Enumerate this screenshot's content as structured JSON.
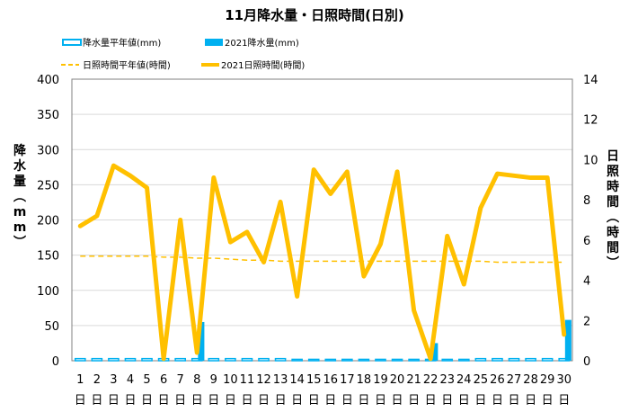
{
  "chart_data": {
    "type": "bar+line",
    "title": "11月降水量・日照時間(日別)",
    "ylabel_left": "降水量(mm)",
    "ylabel_right": "日照時間(時間)",
    "y_left_range": [
      0,
      400
    ],
    "y_right_range": [
      0,
      14
    ],
    "y_left_ticks": [
      "0",
      "50",
      "100",
      "150",
      "200",
      "250",
      "300",
      "350",
      "400"
    ],
    "y_right_ticks": [
      "0",
      "2",
      "4",
      "6",
      "8",
      "10",
      "12",
      "14"
    ],
    "x_day_labels": [
      "1",
      "2",
      "3",
      "4",
      "5",
      "6",
      "7",
      "8",
      "9",
      "10",
      "11",
      "12",
      "13",
      "14",
      "15",
      "16",
      "17",
      "18",
      "19",
      "20",
      "21",
      "22",
      "23",
      "24",
      "25",
      "26",
      "27",
      "28",
      "29",
      "30"
    ],
    "x_unit_label": "日",
    "grid": "horizontal",
    "legend_placement": "top",
    "series": [
      {
        "name": "降水量平年値(mm)",
        "kind": "bar-outline",
        "axis": "left",
        "color": "#00b0f0",
        "values": [
          3,
          3,
          3,
          3,
          3,
          3,
          3,
          3,
          3,
          3,
          3,
          3,
          3,
          2,
          2,
          2,
          2,
          2,
          2,
          2,
          2,
          2,
          2,
          2,
          3,
          3,
          3,
          3,
          3,
          3
        ]
      },
      {
        "name": "2021降水量(mm)",
        "kind": "bar",
        "axis": "left",
        "color": "#00b0f0",
        "values": [
          0,
          0,
          0,
          0,
          0,
          0,
          0,
          55,
          0,
          0,
          0,
          0,
          0,
          0,
          0,
          0,
          0,
          0,
          0,
          0,
          0,
          25,
          0,
          0,
          0,
          0,
          0,
          0,
          0,
          58
        ]
      },
      {
        "name": "日照時間平年値(時間)",
        "kind": "line-dashed",
        "axis": "right",
        "color": "#ffc000",
        "values": [
          5.2,
          5.2,
          5.2,
          5.2,
          5.2,
          5.15,
          5.15,
          5.1,
          5.1,
          5.05,
          5.0,
          5.0,
          4.95,
          4.95,
          4.95,
          4.95,
          4.95,
          4.95,
          4.95,
          4.95,
          4.95,
          4.95,
          4.95,
          4.95,
          4.95,
          4.9,
          4.9,
          4.9,
          4.9,
          4.9
        ]
      },
      {
        "name": "2021日照時間(時間)",
        "kind": "line",
        "axis": "right",
        "color": "#ffc000",
        "values": [
          6.7,
          7.2,
          9.7,
          9.2,
          8.6,
          0.1,
          7.0,
          0.4,
          9.1,
          5.9,
          6.4,
          4.9,
          7.9,
          3.2,
          9.5,
          8.3,
          9.4,
          4.2,
          5.8,
          9.4,
          2.5,
          0.1,
          6.2,
          3.8,
          7.6,
          9.3,
          9.2,
          9.1,
          9.1,
          1.3
        ]
      }
    ]
  }
}
